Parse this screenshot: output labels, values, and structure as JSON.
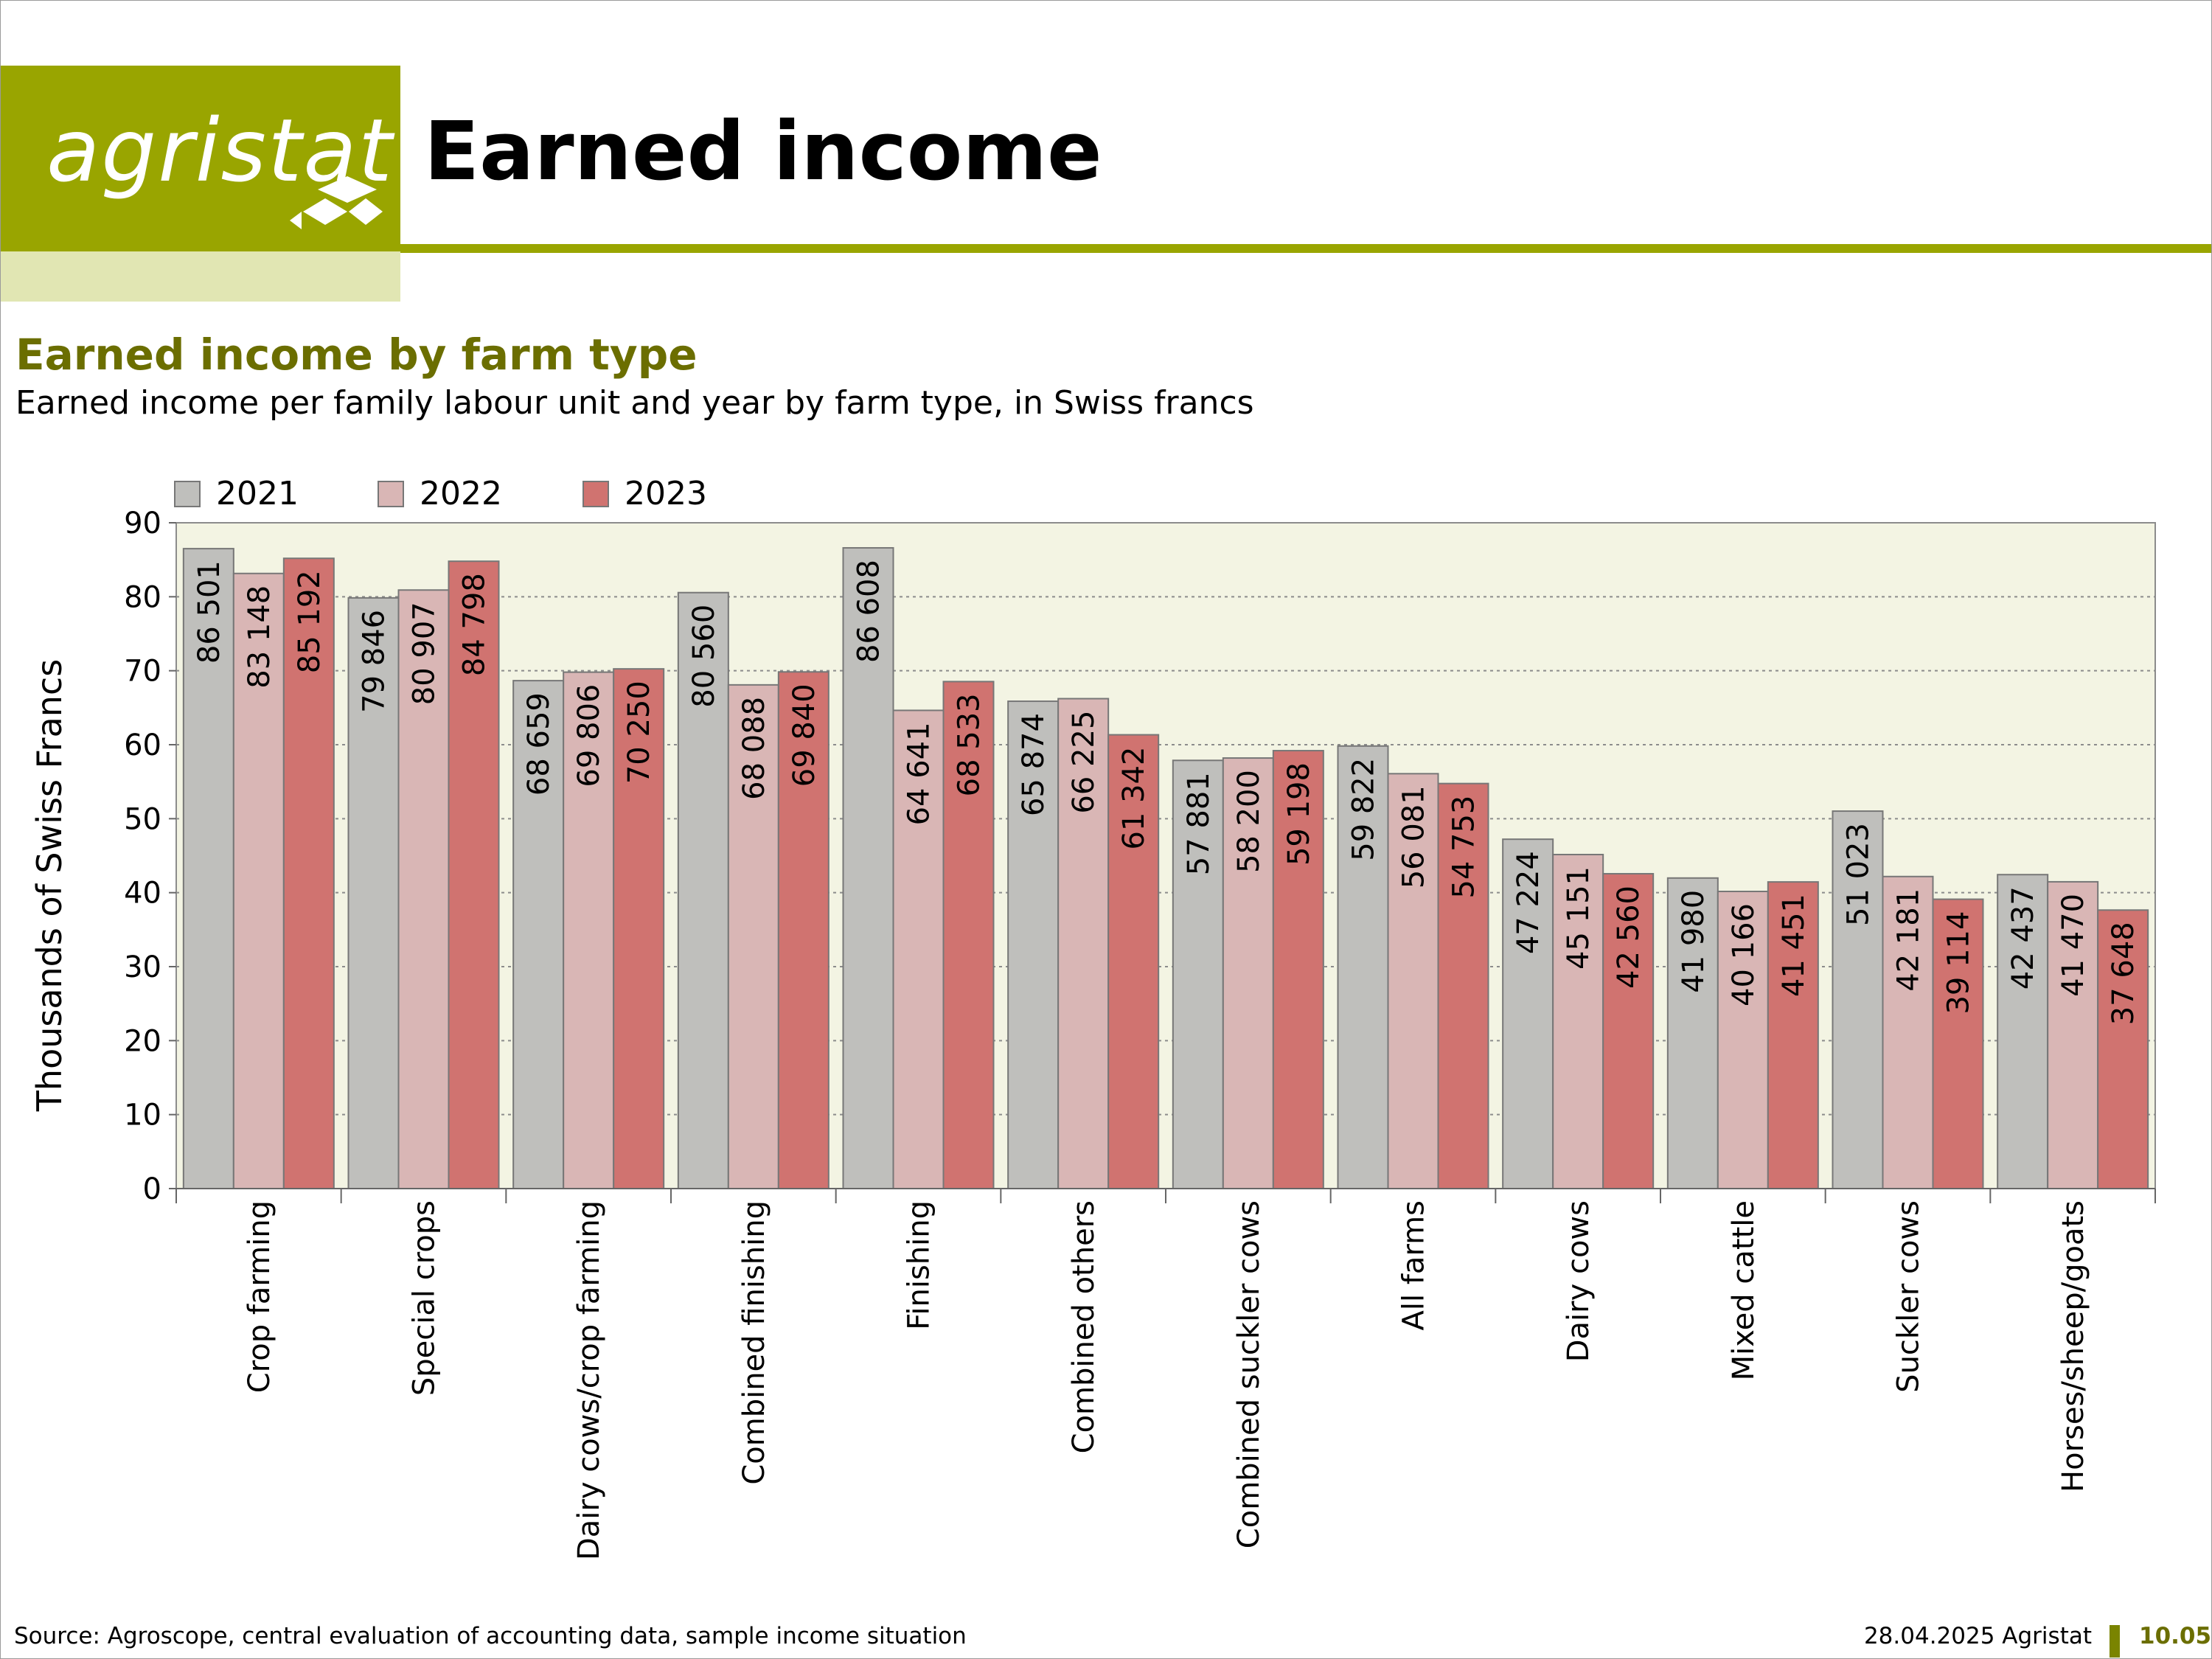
{
  "logo": {
    "text": "agristat"
  },
  "header": {
    "title": "Earned income"
  },
  "chart_heading": {
    "title": "Earned income by farm type",
    "subtitle": "Earned income per family labour unit and year by farm type, in Swiss francs"
  },
  "chart_data": {
    "type": "bar",
    "ylabel": "Thousands of Swiss Francs",
    "ylim": [
      0,
      90
    ],
    "yticks": [
      0,
      10,
      20,
      30,
      40,
      50,
      60,
      70,
      80,
      90
    ],
    "grid": true,
    "legend_position": "top-left",
    "categories": [
      "Crop farming",
      "Special crops",
      "Dairy cows/crop farming",
      "Combined finishing",
      "Finishing",
      "Combined others",
      "Combined suckler cows",
      "All farms",
      "Dairy cows",
      "Mixed cattle",
      "Suckler cows",
      "Horses/sheep/goats"
    ],
    "series": [
      {
        "name": "2021",
        "color": "#bfbfbc",
        "values": [
          86501,
          79846,
          68659,
          80560,
          86608,
          65874,
          57881,
          59822,
          47224,
          41980,
          51023,
          42437
        ],
        "labels": [
          "86 501",
          "79 846",
          "68 659",
          "80 560",
          "86 608",
          "65 874",
          "57 881",
          "59 822",
          "47 224",
          "41 980",
          "51 023",
          "42 437"
        ]
      },
      {
        "name": "2022",
        "color": "#d9b6b5",
        "values": [
          83148,
          80907,
          69806,
          68088,
          64641,
          66225,
          58200,
          56081,
          45151,
          40166,
          42181,
          41470
        ],
        "labels": [
          "83 148",
          "80 907",
          "69 806",
          "68 088",
          "64 641",
          "66 225",
          "58 200",
          "56 081",
          "45 151",
          "40 166",
          "42 181",
          "41 470"
        ]
      },
      {
        "name": "2023",
        "color": "#d07370",
        "values": [
          85192,
          84798,
          70250,
          69840,
          68533,
          61342,
          59198,
          54753,
          42560,
          41451,
          39114,
          37648
        ],
        "labels": [
          "85 192",
          "84 798",
          "70 250",
          "69 840",
          "68 533",
          "61 342",
          "59 198",
          "54 753",
          "42 560",
          "41 451",
          "39 114",
          "37 648"
        ]
      }
    ],
    "plot_background": "#f3f4e3"
  },
  "footer": {
    "source": "Source: Agroscope, central evaluation of accounting data, sample income situation",
    "date": "28.04.2025 Agristat",
    "page": "10.05"
  }
}
